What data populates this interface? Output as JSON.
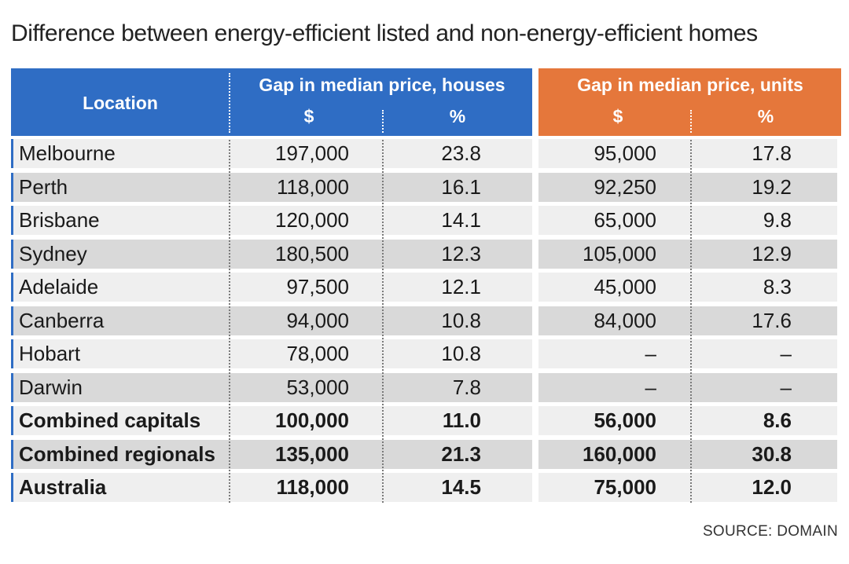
{
  "title": "Difference between energy-efficient listed and non-energy-efficient homes",
  "source": "SOURCE: DOMAIN",
  "colors": {
    "houses_header": "#2f6dc4",
    "units_header": "#e5773b",
    "row_light": "#efefef",
    "row_dark": "#d9d9d9"
  },
  "chart_data": {
    "type": "table",
    "title": "Difference between energy-efficient listed and non-energy-efficient homes",
    "header": {
      "location": "Location",
      "houses": "Gap in median price, houses",
      "units": "Gap in median price, units",
      "dollar": "$",
      "percent": "%"
    },
    "rows": [
      {
        "location": "Melbourne",
        "house_dollar": "197,000",
        "house_pct": "23.8",
        "unit_dollar": "95,000",
        "unit_pct": "17.8",
        "bold": false
      },
      {
        "location": "Perth",
        "house_dollar": "118,000",
        "house_pct": "16.1",
        "unit_dollar": "92,250",
        "unit_pct": "19.2",
        "bold": false
      },
      {
        "location": "Brisbane",
        "house_dollar": "120,000",
        "house_pct": "14.1",
        "unit_dollar": "65,000",
        "unit_pct": "9.8",
        "bold": false
      },
      {
        "location": "Sydney",
        "house_dollar": "180,500",
        "house_pct": "12.3",
        "unit_dollar": "105,000",
        "unit_pct": "12.9",
        "bold": false
      },
      {
        "location": "Adelaide",
        "house_dollar": "97,500",
        "house_pct": "12.1",
        "unit_dollar": "45,000",
        "unit_pct": "8.3",
        "bold": false
      },
      {
        "location": "Canberra",
        "house_dollar": "94,000",
        "house_pct": "10.8",
        "unit_dollar": "84,000",
        "unit_pct": "17.6",
        "bold": false
      },
      {
        "location": "Hobart",
        "house_dollar": "78,000",
        "house_pct": "10.8",
        "unit_dollar": "–",
        "unit_pct": "–",
        "bold": false
      },
      {
        "location": "Darwin",
        "house_dollar": "53,000",
        "house_pct": "7.8",
        "unit_dollar": "–",
        "unit_pct": "–",
        "bold": false
      },
      {
        "location": "Combined capitals",
        "house_dollar": "100,000",
        "house_pct": "11.0",
        "unit_dollar": "56,000",
        "unit_pct": "8.6",
        "bold": true
      },
      {
        "location": "Combined regionals",
        "house_dollar": "135,000",
        "house_pct": "21.3",
        "unit_dollar": "160,000",
        "unit_pct": "30.8",
        "bold": true
      },
      {
        "location": "Australia",
        "house_dollar": "118,000",
        "house_pct": "14.5",
        "unit_dollar": "75,000",
        "unit_pct": "12.0",
        "bold": true
      }
    ]
  }
}
